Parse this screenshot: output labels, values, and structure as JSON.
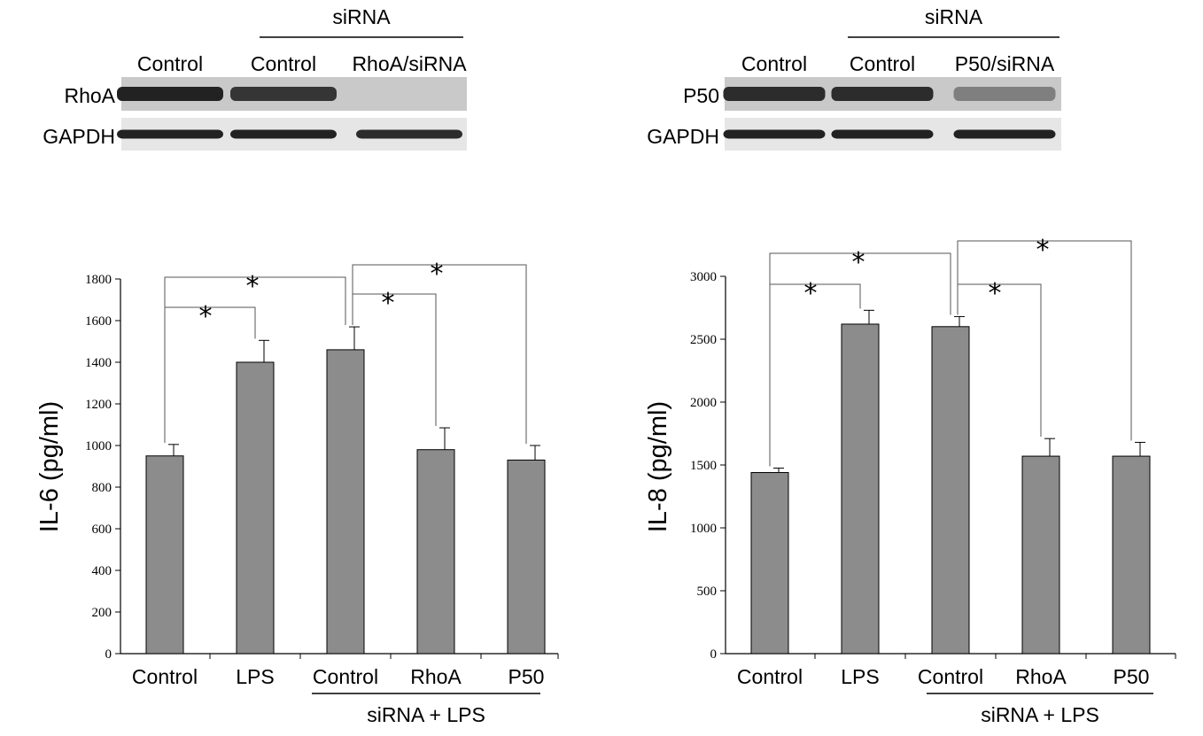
{
  "blots": [
    {
      "header": "siRNA",
      "lanes": [
        "Control",
        "Control",
        "RhoA/siRNA"
      ],
      "rows": [
        {
          "label": "RhoA",
          "intensity": [
            0.95,
            0.85,
            0.05
          ]
        },
        {
          "label": "GAPDH",
          "intensity": [
            0.95,
            0.95,
            0.9
          ]
        }
      ]
    },
    {
      "header": "siRNA",
      "lanes": [
        "Control",
        "Control",
        "P50/siRNA"
      ],
      "rows": [
        {
          "label": "P50",
          "intensity": [
            0.9,
            0.9,
            0.45
          ]
        },
        {
          "label": "GAPDH",
          "intensity": [
            0.95,
            0.95,
            0.95
          ]
        }
      ]
    }
  ],
  "chart_data": [
    {
      "type": "bar",
      "ylabel": "IL-6 (pg/ml)",
      "ylim": [
        0,
        1800
      ],
      "yticks": [
        0,
        200,
        400,
        600,
        800,
        1000,
        1200,
        1400,
        1600,
        1800
      ],
      "categories": [
        "Control",
        "LPS",
        "Control",
        "RhoA",
        "P50"
      ],
      "values": [
        950,
        1400,
        1460,
        980,
        930
      ],
      "errors": [
        55,
        105,
        110,
        105,
        70
      ],
      "group_label": "siRNA + LPS",
      "group_span": [
        2,
        4
      ],
      "bar_color": "#8c8c8c",
      "significance": [
        {
          "from": 0,
          "to": 1,
          "label": "*"
        },
        {
          "from": 0,
          "to": 2,
          "label": "*"
        },
        {
          "from": 2,
          "to": 3,
          "label": "*"
        },
        {
          "from": 2,
          "to": 4,
          "label": "*"
        }
      ]
    },
    {
      "type": "bar",
      "ylabel": "IL-8 (pg/ml)",
      "ylim": [
        0,
        3000
      ],
      "yticks": [
        0,
        500,
        1000,
        1500,
        2000,
        2500,
        3000
      ],
      "categories": [
        "Control",
        "LPS",
        "Control",
        "RhoA",
        "P50"
      ],
      "values": [
        1440,
        2620,
        2600,
        1570,
        1570
      ],
      "errors": [
        35,
        110,
        80,
        140,
        110
      ],
      "group_label": "siRNA + LPS",
      "group_span": [
        2,
        4
      ],
      "bar_color": "#8c8c8c",
      "significance": [
        {
          "from": 0,
          "to": 1,
          "label": "*"
        },
        {
          "from": 0,
          "to": 2,
          "label": "*"
        },
        {
          "from": 2,
          "to": 3,
          "label": "*"
        },
        {
          "from": 2,
          "to": 4,
          "label": "*"
        }
      ]
    }
  ]
}
